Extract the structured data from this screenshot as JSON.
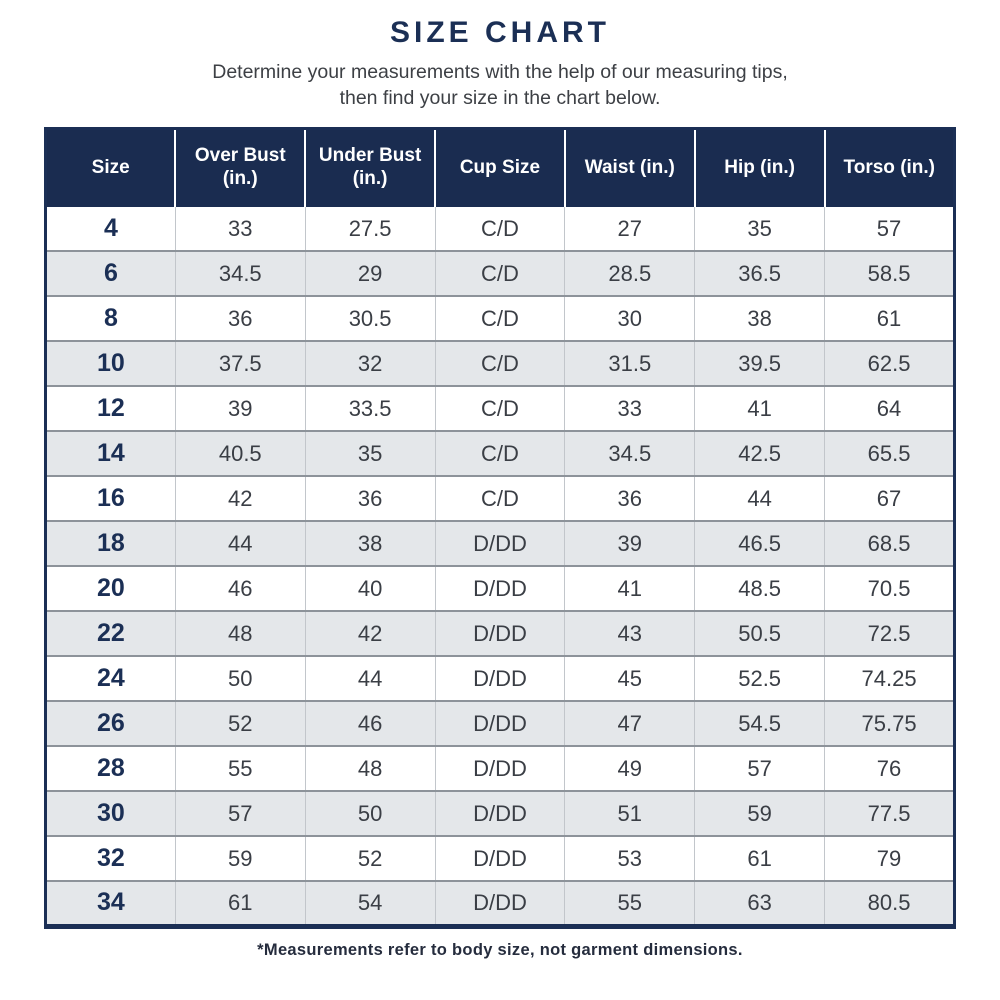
{
  "page": {
    "title": "SIZE CHART",
    "subtitle_line1": "Determine your measurements with the help of our measuring tips,",
    "subtitle_line2": "then find your size in the chart below.",
    "footnote": "*Measurements refer to body size, not garment dimensions."
  },
  "colors": {
    "navy": "#1a2c50",
    "header_bg": "#1a2c50",
    "header_text": "#ffffff",
    "row_bg": "#ffffff",
    "row_alt_bg": "#e4e7ea",
    "body_text": "#3a3e45",
    "size_text": "#1b2f55",
    "row_divider": "#8d939a",
    "col_divider": "#c2c6cb"
  },
  "chart_data": {
    "type": "table",
    "title": "SIZE CHART",
    "columns": [
      "Size",
      "Over Bust (in.)",
      "Under Bust (in.)",
      "Cup Size",
      "Waist (in.)",
      "Hip (in.)",
      "Torso (in.)"
    ],
    "rows": [
      [
        "4",
        "33",
        "27.5",
        "C/D",
        "27",
        "35",
        "57"
      ],
      [
        "6",
        "34.5",
        "29",
        "C/D",
        "28.5",
        "36.5",
        "58.5"
      ],
      [
        "8",
        "36",
        "30.5",
        "C/D",
        "30",
        "38",
        "61"
      ],
      [
        "10",
        "37.5",
        "32",
        "C/D",
        "31.5",
        "39.5",
        "62.5"
      ],
      [
        "12",
        "39",
        "33.5",
        "C/D",
        "33",
        "41",
        "64"
      ],
      [
        "14",
        "40.5",
        "35",
        "C/D",
        "34.5",
        "42.5",
        "65.5"
      ],
      [
        "16",
        "42",
        "36",
        "C/D",
        "36",
        "44",
        "67"
      ],
      [
        "18",
        "44",
        "38",
        "D/DD",
        "39",
        "46.5",
        "68.5"
      ],
      [
        "20",
        "46",
        "40",
        "D/DD",
        "41",
        "48.5",
        "70.5"
      ],
      [
        "22",
        "48",
        "42",
        "D/DD",
        "43",
        "50.5",
        "72.5"
      ],
      [
        "24",
        "50",
        "44",
        "D/DD",
        "45",
        "52.5",
        "74.25"
      ],
      [
        "26",
        "52",
        "46",
        "D/DD",
        "47",
        "54.5",
        "75.75"
      ],
      [
        "28",
        "55",
        "48",
        "D/DD",
        "49",
        "57",
        "76"
      ],
      [
        "30",
        "57",
        "50",
        "D/DD",
        "51",
        "59",
        "77.5"
      ],
      [
        "32",
        "59",
        "52",
        "D/DD",
        "53",
        "61",
        "79"
      ],
      [
        "34",
        "61",
        "54",
        "D/DD",
        "55",
        "63",
        "80.5"
      ]
    ]
  }
}
